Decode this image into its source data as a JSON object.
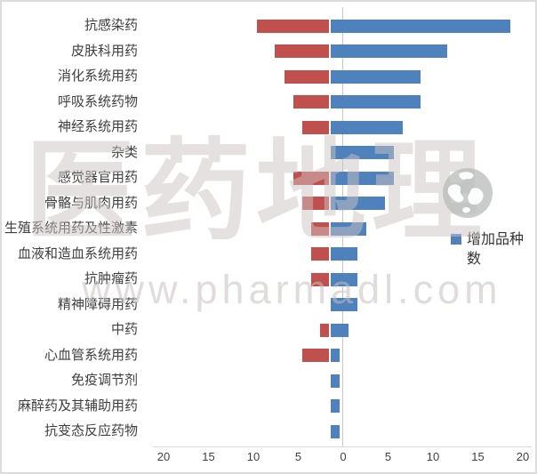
{
  "legend": {
    "label": "增加品种数",
    "color": "#4F81BD"
  },
  "watermark": {
    "brand": "医药地理",
    "url": "www.pharmadl.com"
  },
  "colors": {
    "increase_blue": "#4F81BD",
    "decrease_red": "#C0504D",
    "zero_line": "#c8c8c8",
    "axis_line": "#d9d9d9",
    "label_text": "#3f3f3f"
  },
  "axis": {
    "tick_labels": [
      "20",
      "15",
      "10",
      "5",
      "0",
      "5",
      "10",
      "15",
      "20"
    ]
  },
  "chart_data": {
    "type": "bar",
    "orientation": "horizontal",
    "diverging": true,
    "title": "",
    "xlabel": "",
    "ylabel": "",
    "xlim": [
      -20,
      20
    ],
    "x_ticks": [
      20,
      15,
      10,
      5,
      0,
      5,
      10,
      15,
      20
    ],
    "grid": false,
    "legend_position": "right",
    "categories": [
      "抗感染药",
      "皮肤科用药",
      "消化系统用药",
      "呼吸系统药物",
      "神经系统用药",
      "杂类",
      "感觉器官用药",
      "骨骼与肌肉用药",
      "生殖系统用药及性激素",
      "血液和造血系统用药",
      "抗肿瘤药",
      "精神障碍用药",
      "中药",
      "心血管系统用药",
      "免疫调节剂",
      "麻醉药及其辅助用药",
      "抗变态反应药物"
    ],
    "series": [
      {
        "name": "",
        "side": "left",
        "color": "#C0504D",
        "values": [
          8,
          6,
          5,
          4,
          3,
          0,
          4,
          3,
          2,
          2,
          2,
          0,
          1,
          3,
          0,
          0,
          0
        ]
      },
      {
        "name": "增加品种数",
        "side": "right",
        "color": "#4F81BD",
        "values": [
          20,
          13,
          10,
          10,
          8,
          7,
          7,
          6,
          4,
          3,
          3,
          3,
          2,
          1,
          1,
          1,
          1
        ]
      }
    ]
  }
}
